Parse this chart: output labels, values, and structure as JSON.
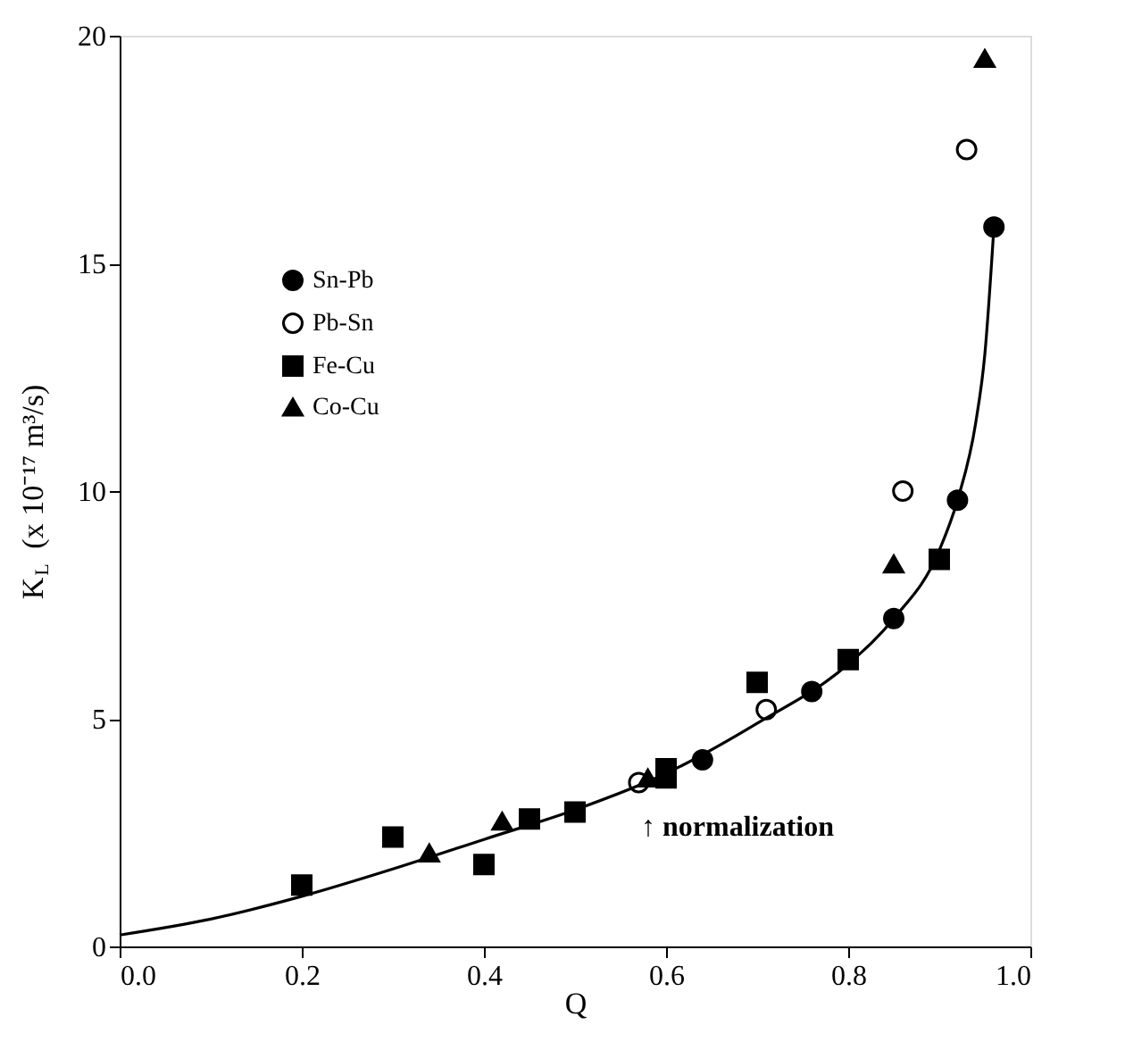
{
  "chart_data": {
    "type": "scatter",
    "xlabel": "Q",
    "ylabel": "K$_{L}$ (x 10⁻¹⁷ m³/s)",
    "xlim": [
      0.0,
      1.0
    ],
    "xticks": [
      {
        "value": 0,
        "label": "0.0"
      },
      0.2,
      0.4,
      0.6,
      0.8,
      {
        "value": 1,
        "label": "1.0"
      }
    ],
    "ylim": [
      0,
      20
    ],
    "yticks": [
      0,
      5,
      10,
      15,
      20
    ],
    "grid": false,
    "legend": "top left",
    "series": [
      {
        "name": "Sn-Pb",
        "color": "#000000",
        "marker": "circle",
        "x": [
          0.64,
          0.76,
          0.85,
          0.92,
          0.96
        ],
        "values": [
          4.1,
          5.6,
          7.2,
          9.8,
          15.8
        ]
      },
      {
        "name": "Pb-Sn",
        "color": "#ffffff",
        "marker": "circle",
        "x": [
          0.57,
          0.71,
          0.86,
          0.93
        ],
        "values": [
          3.6,
          5.2,
          10.0,
          17.5
        ]
      },
      {
        "name": "Fe-Cu",
        "color": "#000000",
        "marker": "square",
        "x": [
          0.2,
          0.3,
          0.4,
          0.45,
          0.5,
          0.6,
          0.6,
          0.7,
          0.8,
          0.9
        ],
        "values": [
          1.35,
          2.4,
          1.8,
          2.8,
          2.95,
          3.9,
          3.7,
          5.8,
          6.3,
          8.5
        ]
      },
      {
        "name": "Co-Cu",
        "color": "#000000",
        "marker": "triangle",
        "x": [
          0.34,
          0.42,
          0.58,
          0.85,
          0.95
        ],
        "values": [
          2.05,
          2.75,
          3.7,
          8.4,
          19.5
        ]
      },
      {
        "type": "line",
        "color": "#000000",
        "line_style": "solid",
        "x": [
          0,
          0.1,
          0.2,
          0.3,
          0.4,
          0.5,
          0.6,
          0.7,
          0.8,
          0.85,
          0.9,
          0.92,
          0.94,
          0.95,
          0.96
        ],
        "values": [
          0.25,
          0.6,
          1.1,
          1.7,
          2.35,
          3.0,
          3.8,
          4.9,
          6.2,
          7.2,
          8.7,
          9.8,
          11.5,
          13.0,
          15.8
        ]
      }
    ],
    "annotations": [
      "↑   normalization"
    ]
  }
}
